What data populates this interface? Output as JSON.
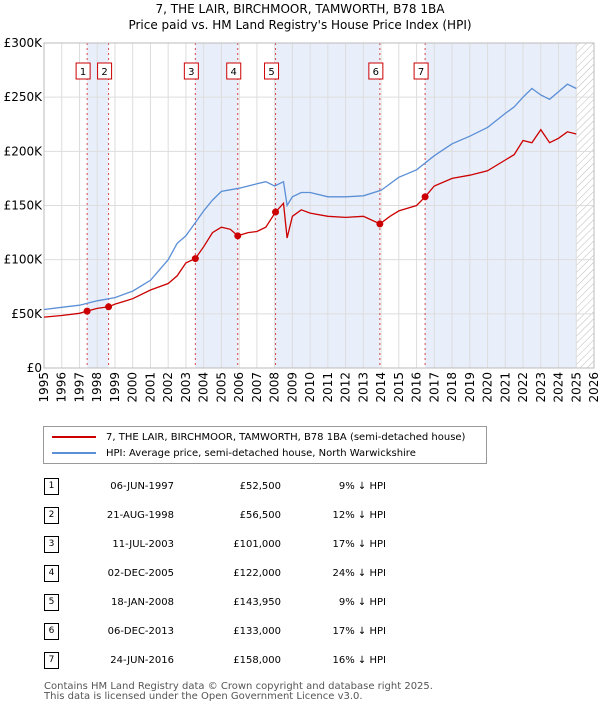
{
  "title_line1": "7, THE LAIR, BIRCHMOOR, TAMWORTH, B78 1BA",
  "title_line2": "Price paid vs. HM Land Registry's House Price Index (HPI)",
  "colors": {
    "property": "#cc0000",
    "hpi": "#5b8fd6",
    "shade": "#e8eefa",
    "grid": "#dddddd",
    "marker_line": "#cc0000"
  },
  "chart_data": {
    "type": "line",
    "title": "Price paid vs. HM Land Registry's House Price Index (HPI)",
    "xlim": [
      1995,
      2026
    ],
    "ylim": [
      0,
      300000
    ],
    "x_ticks": [
      "1995",
      "1996",
      "1997",
      "1998",
      "1999",
      "2000",
      "2001",
      "2002",
      "2003",
      "2004",
      "2005",
      "2006",
      "2007",
      "2008",
      "2009",
      "2010",
      "2011",
      "2012",
      "2013",
      "2014",
      "2015",
      "2016",
      "2017",
      "2018",
      "2019",
      "2020",
      "2021",
      "2022",
      "2023",
      "2024",
      "2025",
      "2026"
    ],
    "y_ticks": [
      {
        "value": 0,
        "label": "£0"
      },
      {
        "value": 50000,
        "label": "£50K"
      },
      {
        "value": 100000,
        "label": "£100K"
      },
      {
        "value": 150000,
        "label": "£150K"
      },
      {
        "value": 200000,
        "label": "£200K"
      },
      {
        "value": 250000,
        "label": "£250K"
      },
      {
        "value": 300000,
        "label": "£300K"
      }
    ],
    "shaded_spans": [
      [
        1997.43,
        1998.64
      ],
      [
        2003.53,
        2005.92
      ],
      [
        2008.05,
        2013.93
      ],
      [
        2016.48,
        2025.0
      ]
    ],
    "hatched_from": 2025.0,
    "series": [
      {
        "name": "7, THE LAIR, BIRCHMOOR, TAMWORTH, B78 1BA (semi-detached house)",
        "x": [
          1995,
          1996,
          1997,
          1997.43,
          1998,
          1998.64,
          1999,
          2000,
          2001,
          2002,
          2002.5,
          2003,
          2003.53,
          2004,
          2004.5,
          2005,
          2005.5,
          2005.92,
          2006.5,
          2007,
          2007.5,
          2008.05,
          2008.5,
          2008.7,
          2009,
          2009.5,
          2010,
          2011,
          2012,
          2013,
          2013.93,
          2014.5,
          2015,
          2016,
          2016.48,
          2017,
          2018,
          2019,
          2020,
          2021,
          2021.5,
          2022,
          2022.5,
          2023,
          2023.5,
          2024,
          2024.5,
          2025
        ],
        "values": [
          47000,
          48500,
          50500,
          52500,
          55000,
          56500,
          59000,
          64000,
          72000,
          78000,
          85000,
          97000,
          101000,
          112000,
          125000,
          130000,
          128000,
          122000,
          125000,
          126000,
          130000,
          143950,
          152000,
          120000,
          140000,
          146000,
          143000,
          140000,
          139000,
          140000,
          133000,
          140000,
          145000,
          150000,
          158000,
          168000,
          175000,
          178000,
          182000,
          192000,
          197000,
          210000,
          208000,
          220000,
          208000,
          212000,
          218000,
          216000
        ]
      },
      {
        "name": "HPI: Average price, semi-detached house, North Warwickshire",
        "x": [
          1995,
          1996,
          1997,
          1998,
          1999,
          2000,
          2001,
          2002,
          2002.5,
          2003,
          2004,
          2004.5,
          2005,
          2006,
          2007,
          2007.5,
          2008,
          2008.5,
          2008.7,
          2009,
          2009.5,
          2010,
          2011,
          2012,
          2013,
          2014,
          2015,
          2016,
          2017,
          2018,
          2019,
          2020,
          2021,
          2021.5,
          2022,
          2022.5,
          2023,
          2023.5,
          2024,
          2024.5,
          2025
        ],
        "values": [
          54000,
          56000,
          58000,
          62000,
          65000,
          71000,
          81000,
          100000,
          115000,
          122000,
          145000,
          155000,
          163000,
          166000,
          170000,
          172000,
          168000,
          172000,
          150000,
          158000,
          162000,
          162000,
          158000,
          158000,
          159000,
          164000,
          176000,
          183000,
          196000,
          207000,
          214000,
          222000,
          235000,
          241000,
          250000,
          258000,
          252000,
          248000,
          255000,
          262000,
          258000
        ]
      }
    ],
    "sales": [
      {
        "n": "1",
        "x": 1997.43,
        "value": 52500
      },
      {
        "n": "2",
        "x": 1998.64,
        "value": 56500
      },
      {
        "n": "3",
        "x": 2003.53,
        "value": 101000
      },
      {
        "n": "4",
        "x": 2005.92,
        "value": 122000
      },
      {
        "n": "5",
        "x": 2008.05,
        "value": 143950
      },
      {
        "n": "6",
        "x": 2013.93,
        "value": 133000
      },
      {
        "n": "7",
        "x": 2016.48,
        "value": 158000
      }
    ]
  },
  "legend": {
    "property": "7, THE LAIR, BIRCHMOOR, TAMWORTH, B78 1BA (semi-detached house)",
    "hpi": "HPI: Average price, semi-detached house, North Warwickshire"
  },
  "transactions": [
    {
      "n": "1",
      "date": "06-JUN-1997",
      "price": "£52,500",
      "hpi": "9% ↓ HPI"
    },
    {
      "n": "2",
      "date": "21-AUG-1998",
      "price": "£56,500",
      "hpi": "12% ↓ HPI"
    },
    {
      "n": "3",
      "date": "11-JUL-2003",
      "price": "£101,000",
      "hpi": "17% ↓ HPI"
    },
    {
      "n": "4",
      "date": "02-DEC-2005",
      "price": "£122,000",
      "hpi": "24% ↓ HPI"
    },
    {
      "n": "5",
      "date": "18-JAN-2008",
      "price": "£143,950",
      "hpi": "9% ↓ HPI"
    },
    {
      "n": "6",
      "date": "06-DEC-2013",
      "price": "£133,000",
      "hpi": "17% ↓ HPI"
    },
    {
      "n": "7",
      "date": "24-JUN-2016",
      "price": "£158,000",
      "hpi": "16% ↓ HPI"
    }
  ],
  "footer_line1": "Contains HM Land Registry data © Crown copyright and database right 2025.",
  "footer_line2": "This data is licensed under the Open Government Licence v3.0."
}
